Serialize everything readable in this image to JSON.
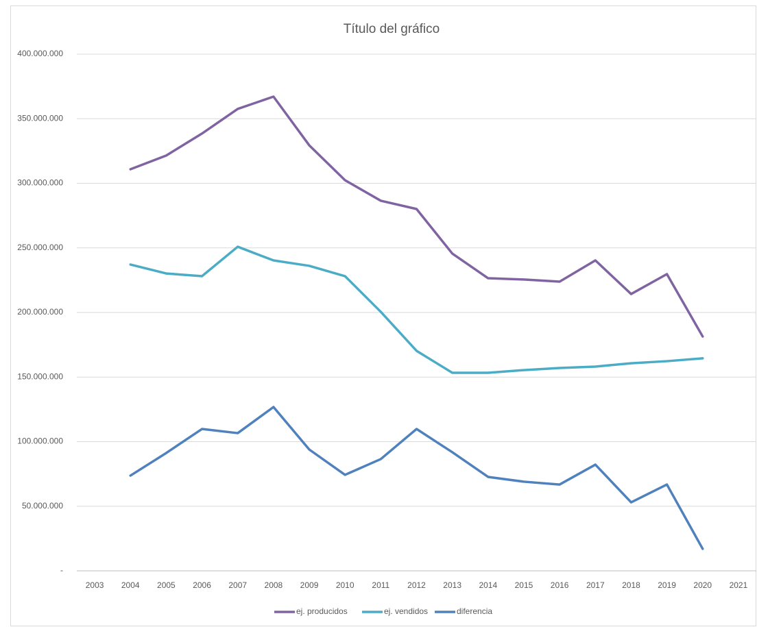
{
  "chart_data": {
    "type": "line",
    "title": "Título del gráfico",
    "categories": [
      "2003",
      "2004",
      "2005",
      "2006",
      "2007",
      "2008",
      "2009",
      "2010",
      "2011",
      "2012",
      "2013",
      "2014",
      "2015",
      "2016",
      "2017",
      "2018",
      "2019",
      "2020",
      "2021"
    ],
    "series": [
      {
        "name": "ej. producidos",
        "color": "#8064a2",
        "values": [
          null,
          310900000,
          321500000,
          338500000,
          357600000,
          367100000,
          329400000,
          302400000,
          286500000,
          280100000,
          245600000,
          226500000,
          225500000,
          223900000,
          240300000,
          214300000,
          229700000,
          181400000,
          null
        ]
      },
      {
        "name": "ej. vendidos",
        "color": "#4bacc6",
        "values": [
          null,
          237100000,
          230200000,
          228100000,
          250900000,
          240300000,
          236100000,
          228100000,
          200500000,
          170300000,
          153300000,
          153300000,
          155400000,
          157000000,
          158100000,
          160700000,
          162300000,
          164500000,
          null
        ]
      },
      {
        "name": "diferencia",
        "color": "#4f81bd",
        "values": [
          null,
          73700000,
          91200000,
          109800000,
          106600000,
          126800000,
          93900000,
          74300000,
          86500000,
          109800000,
          91800000,
          72700000,
          69000000,
          66800000,
          82200000,
          53000000,
          66800000,
          17000000,
          null
        ]
      }
    ],
    "ylim": [
      0,
      400000000
    ],
    "yticks": [
      {
        "value": 0,
        "label": "-"
      },
      {
        "value": 50000000,
        "label": "50.000.000"
      },
      {
        "value": 100000000,
        "label": "100.000.000"
      },
      {
        "value": 150000000,
        "label": "150.000.000"
      },
      {
        "value": 200000000,
        "label": "200.000.000"
      },
      {
        "value": 250000000,
        "label": "250.000.000"
      },
      {
        "value": 300000000,
        "label": "300.000.000"
      },
      {
        "value": 350000000,
        "label": "350.000.000"
      },
      {
        "value": 400000000,
        "label": "400.000.000"
      }
    ],
    "grid": true,
    "legend": "bottom"
  }
}
